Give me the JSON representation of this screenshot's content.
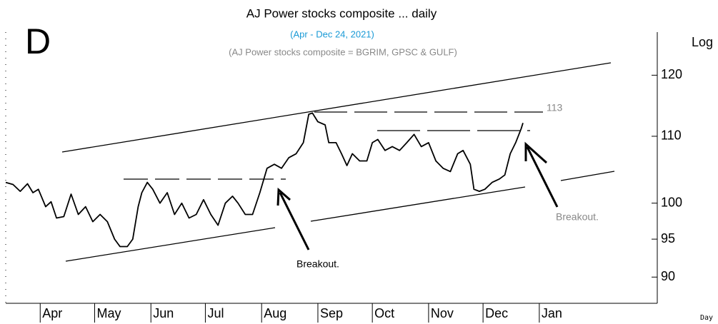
{
  "chart_data": {
    "type": "line",
    "panel_label": "D",
    "title": "AJ Power stocks composite  ... daily",
    "subtitle": "(Apr - Dec 24, 2021)",
    "note": "(AJ Power stocks composite = BGRIM, GPSC & GULF)",
    "y_axis_label": "Log",
    "x_axis_label": "Day",
    "annotations": [
      "113",
      "Breakout.",
      "Breakout."
    ],
    "log_scale": true,
    "xlim": [
      -19,
      340
    ],
    "ylim": [
      86.7,
      127.6
    ],
    "xticks": [
      {
        "value": 0,
        "label": "Apr"
      },
      {
        "value": 30,
        "label": "May"
      },
      {
        "value": 61,
        "label": "Jun"
      },
      {
        "value": 91,
        "label": "Jul"
      },
      {
        "value": 122,
        "label": "Aug"
      },
      {
        "value": 153,
        "label": "Sep"
      },
      {
        "value": 183,
        "label": "Oct"
      },
      {
        "value": 214,
        "label": "Nov"
      },
      {
        "value": 244,
        "label": "Dec"
      },
      {
        "value": 275,
        "label": "Jan"
      }
    ],
    "yticks": [
      90,
      95,
      100,
      110,
      120
    ],
    "series": [
      {
        "name": "AJ Power stocks composite",
        "color": "#000000",
        "x": [
          -19,
          -15,
          -11,
          -7,
          -4,
          -1,
          3,
          6,
          9,
          13,
          17,
          21,
          25,
          29,
          33,
          37,
          41,
          44,
          48,
          51,
          54,
          56,
          59,
          62,
          66,
          70,
          74,
          78,
          82,
          86,
          90,
          94,
          98,
          102,
          106,
          109,
          113,
          117,
          121,
          125,
          129,
          133,
          137,
          141,
          145,
          148,
          150,
          153,
          157,
          159,
          163,
          166,
          169,
          172,
          176,
          180,
          183,
          186,
          190,
          194,
          198,
          202,
          206,
          210,
          214,
          218,
          222,
          226,
          230,
          233,
          237,
          239,
          242,
          245,
          249,
          253,
          256,
          259,
          262,
          265,
          266
        ],
        "values": [
          103.0,
          102.7,
          101.7,
          102.8,
          101.5,
          102.0,
          99.5,
          100.2,
          97.9,
          98.1,
          101.3,
          98.4,
          99.5,
          97.4,
          98.4,
          97.4,
          95.0,
          94.0,
          94.0,
          95.0,
          99.5,
          101.5,
          103.0,
          102.0,
          100.0,
          101.5,
          98.4,
          100.0,
          97.9,
          98.4,
          100.5,
          98.4,
          96.9,
          100.0,
          101.0,
          100.0,
          98.4,
          98.4,
          101.5,
          105.1,
          105.7,
          105.1,
          106.7,
          107.3,
          109.0,
          113.5,
          113.7,
          112.3,
          111.8,
          109.0,
          109.0,
          107.3,
          105.5,
          107.3,
          106.2,
          106.2,
          109.0,
          109.5,
          107.8,
          108.4,
          107.8,
          109.0,
          110.3,
          108.4,
          109.0,
          106.2,
          105.1,
          104.6,
          107.3,
          107.8,
          105.7,
          102.0,
          101.7,
          102.0,
          103.0,
          103.5,
          104.1,
          107.3,
          109.0,
          111.2,
          112.1
        ]
      }
    ]
  }
}
